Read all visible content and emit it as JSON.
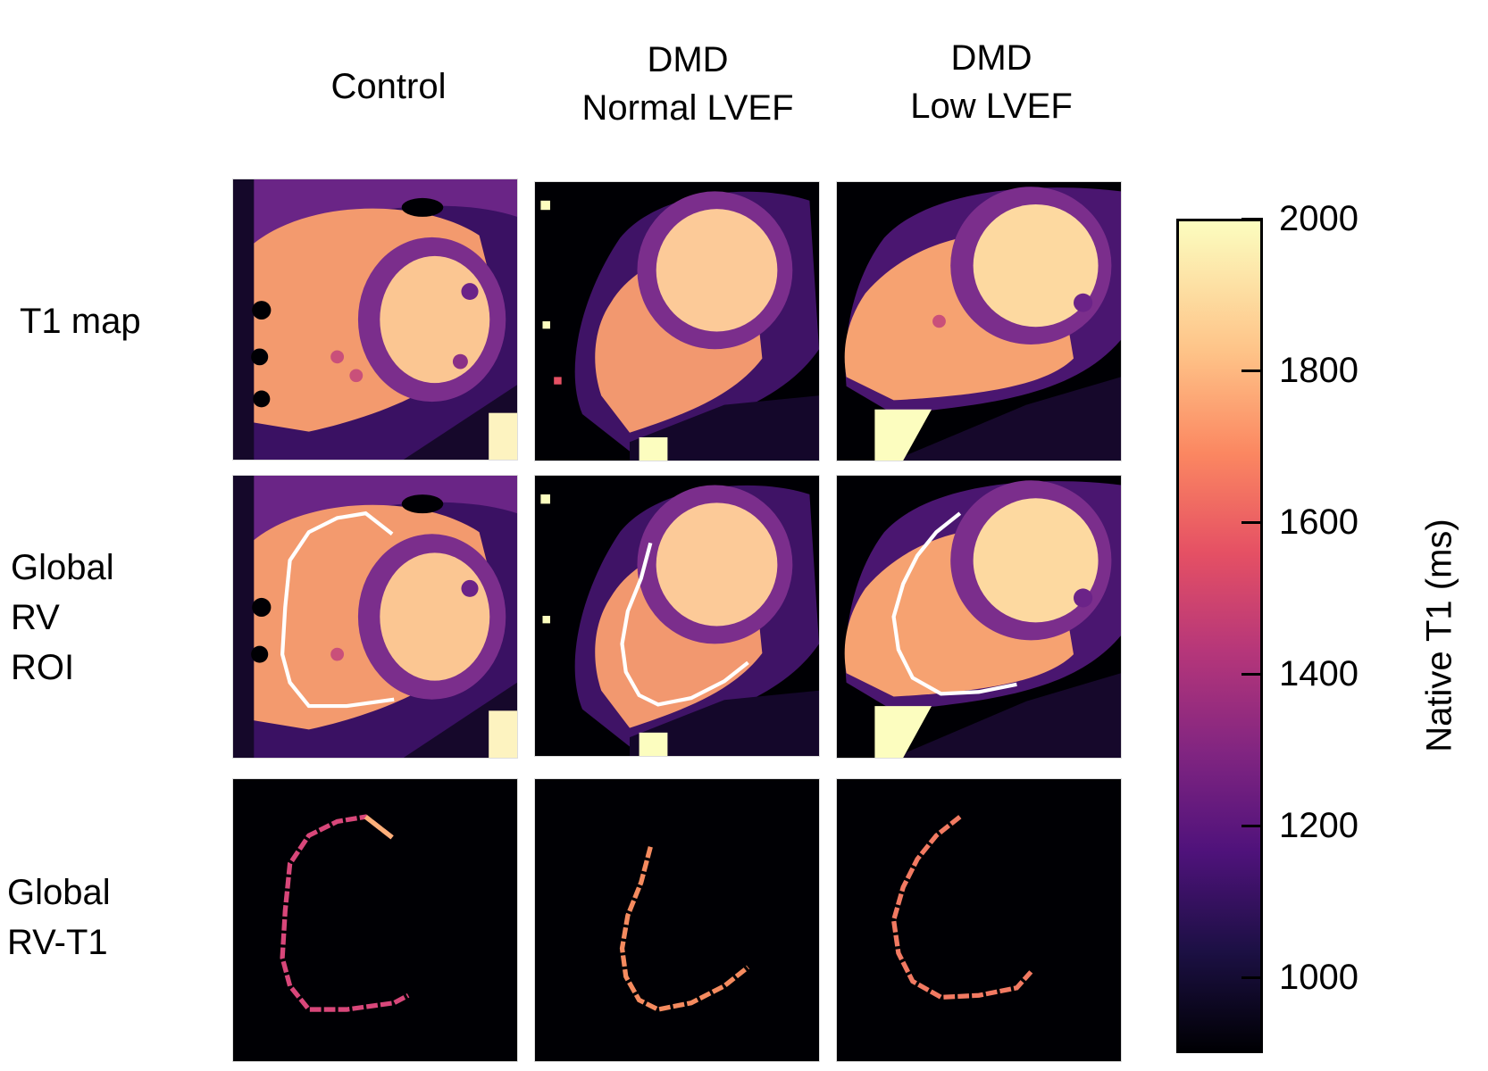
{
  "columns": [
    {
      "id": "control",
      "lines": [
        "Control"
      ]
    },
    {
      "id": "dmd-normal",
      "lines": [
        "DMD",
        "Normal LVEF"
      ]
    },
    {
      "id": "dmd-low",
      "lines": [
        "DMD",
        "Low LVEF"
      ]
    }
  ],
  "rows": [
    {
      "id": "t1-map",
      "lines": [
        "T1 map"
      ]
    },
    {
      "id": "global-rv-roi",
      "lines": [
        "Global",
        "RV",
        "ROI"
      ]
    },
    {
      "id": "global-rv-t1",
      "lines": [
        "Global",
        "RV-T1"
      ]
    }
  ],
  "colorbar": {
    "label": "Native T1 (ms)",
    "min": 900,
    "max": 2000,
    "ticks": [
      "2000",
      "1800",
      "1600",
      "1400",
      "1200",
      "1000"
    ],
    "tick_values": [
      2000,
      1800,
      1600,
      1400,
      1200,
      1000
    ],
    "colormap": "magma"
  },
  "colors": {
    "background_tissue": "#2a0f4d",
    "blood_pool": "#f8a46c",
    "lv_blood": "#fdd9a0",
    "myocardium": "#7b2e8c",
    "roi_outline": "#ffffff",
    "panel_background": "#000004"
  }
}
